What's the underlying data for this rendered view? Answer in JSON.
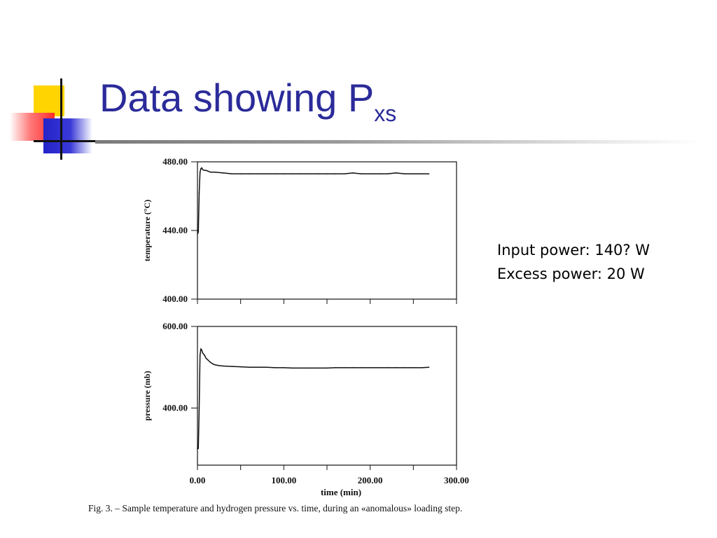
{
  "slide": {
    "title_main": "Data showing P",
    "title_sub": "xs",
    "notes": [
      "Input power: 140? W",
      "Excess power: 20 W"
    ],
    "caption": "Fig. 3. – Sample temperature and hydrogen pressure vs. time, during an «anomalous» loading step."
  },
  "colors": {
    "title": "#2b2b9a",
    "emblem_yellow": "#ffd400",
    "emblem_red": "#ff2b2b",
    "emblem_blue": "#2323c8",
    "trace": "#111111"
  },
  "chart_data": [
    {
      "type": "line",
      "ylabel": "temperature (°C)",
      "xlabel": "",
      "xlim": [
        0,
        300
      ],
      "ylim": [
        400,
        480
      ],
      "yticks": [
        400,
        440,
        480
      ],
      "ytick_labels": [
        "400.00",
        "440.00",
        "480.00"
      ],
      "xticks": [
        0,
        50,
        100,
        150,
        200,
        250,
        300
      ],
      "series": [
        {
          "x": [
            0,
            1,
            2,
            3,
            4,
            5,
            6,
            8,
            10,
            15,
            20,
            30,
            40,
            50,
            60,
            70,
            80,
            90,
            100,
            110,
            120,
            130,
            140,
            150,
            160,
            170,
            180,
            190,
            200,
            210,
            220,
            230,
            240,
            250,
            260,
            268
          ],
          "y": [
            438,
            439,
            462,
            474,
            476,
            476.5,
            475.5,
            475,
            475,
            474,
            474,
            473.5,
            473,
            473,
            473,
            473,
            473,
            473,
            473,
            473,
            473,
            473,
            473,
            473,
            473,
            473,
            473.5,
            473,
            473,
            473,
            473,
            473.5,
            473,
            473,
            473,
            473
          ]
        }
      ]
    },
    {
      "type": "line",
      "ylabel": "pressure (mb)",
      "xlabel": "time (min)",
      "xlim": [
        0,
        300
      ],
      "ylim": [
        260,
        600
      ],
      "yticks": [
        400,
        600
      ],
      "ytick_labels": [
        "400.00",
        "600.00"
      ],
      "xticks": [
        0,
        50,
        100,
        150,
        200,
        250,
        300
      ],
      "xtick_labels": [
        "0.00",
        "100.00",
        "200.00",
        "300.00"
      ],
      "xtick_label_values": [
        0,
        100,
        200,
        300
      ],
      "series": [
        {
          "x": [
            0,
            1,
            2,
            3,
            4,
            5,
            6,
            8,
            10,
            12,
            15,
            18,
            20,
            25,
            30,
            40,
            50,
            60,
            70,
            80,
            90,
            100,
            110,
            120,
            130,
            140,
            150,
            160,
            170,
            180,
            190,
            200,
            210,
            220,
            230,
            240,
            250,
            260,
            268
          ],
          "y": [
            300,
            301,
            400,
            530,
            545,
            542,
            535,
            530,
            522,
            518,
            512,
            508,
            506,
            504,
            503,
            502,
            501,
            500,
            500,
            500,
            499,
            499,
            498,
            498,
            498,
            498,
            498,
            499,
            499,
            499,
            499,
            499,
            499,
            499,
            499,
            499,
            499,
            499,
            500
          ]
        }
      ]
    }
  ]
}
